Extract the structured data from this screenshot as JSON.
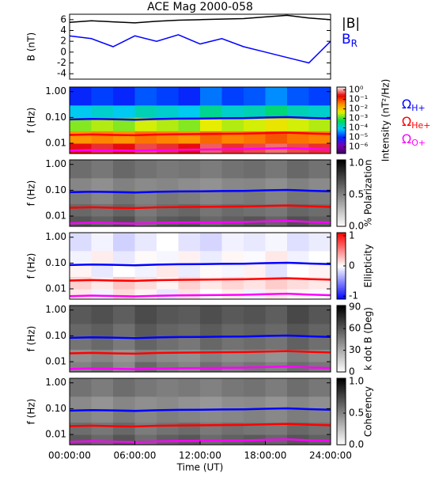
{
  "chart_data": [
    {
      "type": "line",
      "title": "ACE Mag 2000-058",
      "ylabel": "B (nT)",
      "xlim": [
        0,
        24
      ],
      "x": [
        0,
        2,
        4,
        6,
        8,
        10,
        12,
        14,
        16,
        18,
        20,
        22,
        24
      ],
      "ylim": [
        -5,
        7
      ],
      "yticks": [
        -4,
        -2,
        0,
        2,
        4,
        6
      ],
      "series": [
        {
          "name": "|B|",
          "color": "#000000",
          "values": [
            5.5,
            5.8,
            5.6,
            5.4,
            5.7,
            5.9,
            6.0,
            6.1,
            6.2,
            6.5,
            6.8,
            6.3,
            6.0
          ]
        },
        {
          "name": "B",
          "subscript": "R",
          "color": "#0000ff",
          "values": [
            3.0,
            2.5,
            1.0,
            3.0,
            2.0,
            3.2,
            1.5,
            2.5,
            1.0,
            0.0,
            -1.0,
            -2.0,
            2.0
          ]
        }
      ]
    },
    {
      "type": "heatmap",
      "ylabel": "f (Hz)",
      "xlim": [
        0,
        24
      ],
      "ylim": [
        0.004,
        1.5
      ],
      "ylog": true,
      "yticks": [
        0.01,
        {
          "value": 0.1,
          "label": "0.10"
        },
        {
          "value": 1,
          "label": "1.00"
        }
      ],
      "x_bins": [
        0,
        2,
        4,
        6,
        8,
        10,
        12,
        14,
        16,
        18,
        20,
        22,
        24
      ],
      "y_bins": [
        0.004,
        0.01,
        0.03,
        0.1,
        0.3,
        1.5
      ],
      "z": [
        [
          0.3,
          0.4,
          0.3,
          0.5,
          0.4,
          0.3,
          0.6,
          0.4,
          0.5,
          0.7,
          0.5,
          0.4
        ],
        [
          0.03,
          0.04,
          0.03,
          0.05,
          0.04,
          0.03,
          0.06,
          0.04,
          0.05,
          0.08,
          0.05,
          0.04
        ],
        [
          0.002,
          0.003,
          0.002,
          0.004,
          0.003,
          0.002,
          0.005,
          0.003,
          0.004,
          0.006,
          0.004,
          0.003
        ],
        [
          0.0001,
          0.00015,
          0.0001,
          0.0002,
          0.00015,
          0.0001,
          0.0003,
          0.00015,
          0.0002,
          0.0004,
          0.0002,
          0.00015
        ],
        [
          1e-05,
          1.5e-05,
          1e-05,
          2e-05,
          1.5e-05,
          1e-05,
          3e-05,
          1.5e-05,
          2e-05,
          4e-05,
          2e-05,
          1.5e-05
        ]
      ],
      "colormap": "rainbow",
      "zlog": true,
      "zlim": [
        2e-07,
        2
      ],
      "colorbar_label": "Intensity (nT²/Hz)",
      "zticks": [
        {
          "value": 1,
          "label": "10⁰"
        },
        {
          "value": 0.1,
          "label": "10⁻¹"
        },
        {
          "value": 0.01,
          "label": "10⁻²"
        },
        {
          "value": 0.001,
          "label": "10⁻³"
        },
        {
          "value": 0.0001,
          "label": "10⁻⁴"
        },
        {
          "value": 1e-05,
          "label": "10⁻⁵"
        },
        {
          "value": 1e-06,
          "label": "10⁻⁶"
        }
      ],
      "x": [
        0,
        2,
        4,
        6,
        8,
        10,
        12,
        14,
        16,
        18,
        20,
        22,
        24
      ],
      "series": [
        {
          "name": "Ω",
          "subscript": "H+",
          "color": "#0000ff",
          "values": [
            0.084,
            0.088,
            0.085,
            0.082,
            0.087,
            0.09,
            0.091,
            0.093,
            0.094,
            0.099,
            0.103,
            0.096,
            0.091
          ]
        },
        {
          "name": "Ω",
          "subscript": "He+",
          "color": "#ff0000",
          "values": [
            0.021,
            0.022,
            0.021,
            0.0205,
            0.0217,
            0.0224,
            0.0228,
            0.0232,
            0.0236,
            0.0247,
            0.0258,
            0.024,
            0.0228
          ]
        },
        {
          "name": "Ω",
          "subscript": "O+",
          "color": "#ff00ff",
          "values": [
            0.0052,
            0.0055,
            0.0053,
            0.0051,
            0.0054,
            0.0056,
            0.0057,
            0.0058,
            0.0059,
            0.0062,
            0.0065,
            0.006,
            0.0057
          ]
        }
      ]
    },
    {
      "type": "heatmap",
      "ylabel": "f (Hz)",
      "xlim": [
        0,
        24
      ],
      "ylim": [
        0.004,
        1.5
      ],
      "ylog": true,
      "yticks": [
        0.01,
        {
          "value": 0.1,
          "label": "0.10"
        },
        {
          "value": 1,
          "label": "1.00"
        }
      ],
      "x_bins": [
        0,
        2,
        4,
        6,
        8,
        10,
        12,
        14,
        16,
        18,
        20,
        22,
        24
      ],
      "y_bins": [
        0.004,
        0.01,
        0.03,
        0.1,
        0.3,
        1.5
      ],
      "z": [
        [
          0.7,
          0.65,
          0.72,
          0.6,
          0.68,
          0.7,
          0.62,
          0.66,
          0.7,
          0.64,
          0.72,
          0.66
        ],
        [
          0.62,
          0.58,
          0.64,
          0.55,
          0.6,
          0.63,
          0.57,
          0.61,
          0.59,
          0.56,
          0.63,
          0.6
        ],
        [
          0.55,
          0.5,
          0.58,
          0.52,
          0.56,
          0.54,
          0.5,
          0.53,
          0.55,
          0.51,
          0.57,
          0.54
        ],
        [
          0.5,
          0.46,
          0.52,
          0.48,
          0.5,
          0.47,
          0.45,
          0.49,
          0.5,
          0.46,
          0.52,
          0.48
        ],
        [
          0.6,
          0.56,
          0.62,
          0.58,
          0.55,
          0.57,
          0.54,
          0.58,
          0.6,
          0.56,
          0.62,
          0.58
        ]
      ],
      "colormap": "gray",
      "zlim": [
        0,
        1.05
      ],
      "colorbar_label": "% Polarization",
      "zticks": [
        {
          "value": 0,
          "label": "0.0"
        },
        0.5,
        {
          "value": 1,
          "label": "1.0"
        }
      ]
    },
    {
      "type": "heatmap",
      "ylabel": "f (Hz)",
      "xlim": [
        0,
        24
      ],
      "ylim": [
        0.004,
        1.5
      ],
      "ylog": true,
      "yticks": [
        0.01,
        {
          "value": 0.1,
          "label": "0.10"
        },
        {
          "value": 1,
          "label": "1.00"
        }
      ],
      "x_bins": [
        0,
        2,
        4,
        6,
        8,
        10,
        12,
        14,
        16,
        18,
        20,
        22,
        24
      ],
      "y_bins": [
        0.004,
        0.01,
        0.03,
        0.1,
        0.3,
        1.5
      ],
      "z": [
        [
          0.1,
          -0.05,
          0.15,
          0.05,
          -0.1,
          0.12,
          0.0,
          0.08,
          -0.06,
          0.1,
          0.04,
          -0.02
        ],
        [
          0.2,
          0.1,
          0.25,
          0.15,
          0.05,
          0.2,
          0.1,
          0.18,
          0.12,
          0.22,
          0.15,
          0.1
        ],
        [
          0.05,
          -0.1,
          0.0,
          -0.05,
          0.1,
          -0.08,
          0.02,
          -0.04,
          0.06,
          -0.12,
          0.0,
          0.05
        ],
        [
          -0.05,
          0.08,
          -0.1,
          0.02,
          -0.04,
          0.06,
          -0.08,
          0.04,
          -0.02,
          0.1,
          -0.06,
          0.0
        ],
        [
          -0.15,
          -0.05,
          -0.2,
          -0.1,
          0.0,
          -0.12,
          -0.18,
          -0.06,
          -0.1,
          -0.04,
          -0.14,
          -0.08
        ]
      ],
      "colormap": "bwr",
      "zlim": [
        -1.1,
        1.1
      ],
      "colorbar_label": "Ellipticity",
      "zticks": [
        -1,
        0,
        1
      ]
    },
    {
      "type": "heatmap",
      "ylabel": "f (Hz)",
      "xlim": [
        0,
        24
      ],
      "ylim": [
        0.004,
        1.5
      ],
      "ylog": true,
      "yticks": [
        0.01,
        {
          "value": 0.1,
          "label": "0.10"
        },
        {
          "value": 1,
          "label": "1.00"
        }
      ],
      "x_bins": [
        0,
        2,
        4,
        6,
        8,
        10,
        12,
        14,
        16,
        18,
        20,
        22,
        24
      ],
      "y_bins": [
        0.004,
        0.01,
        0.03,
        0.1,
        0.3,
        1.5
      ],
      "z": [
        [
          45,
          50,
          42,
          55,
          48,
          44,
          52,
          47,
          50,
          46,
          53,
          49
        ],
        [
          40,
          44,
          38,
          46,
          42,
          40,
          45,
          41,
          43,
          39,
          47,
          42
        ],
        [
          50,
          54,
          48,
          56,
          52,
          49,
          55,
          51,
          53,
          50,
          57,
          52
        ],
        [
          55,
          58,
          52,
          60,
          56,
          54,
          59,
          55,
          57,
          54,
          61,
          56
        ],
        [
          60,
          63,
          58,
          65,
          61,
          59,
          64,
          60,
          62,
          58,
          66,
          61
        ]
      ],
      "colormap": "gray",
      "zlim": [
        0,
        92
      ],
      "colorbar_label": "k dot B (Deg)",
      "zticks": [
        0,
        30,
        60,
        90
      ]
    },
    {
      "type": "heatmap",
      "ylabel": "f (Hz)",
      "xlim": [
        0,
        24
      ],
      "ylim": [
        0.004,
        1.5
      ],
      "ylog": true,
      "yticks": [
        0.01,
        {
          "value": 0.1,
          "label": "0.10"
        },
        {
          "value": 1,
          "label": "1.00"
        }
      ],
      "x_bins": [
        0,
        2,
        4,
        6,
        8,
        10,
        12,
        14,
        16,
        18,
        20,
        22,
        24
      ],
      "y_bins": [
        0.004,
        0.01,
        0.03,
        0.1,
        0.3,
        1.5
      ],
      "z": [
        [
          0.68,
          0.62,
          0.7,
          0.6,
          0.66,
          0.69,
          0.61,
          0.65,
          0.68,
          0.63,
          0.7,
          0.65
        ],
        [
          0.6,
          0.56,
          0.62,
          0.54,
          0.58,
          0.61,
          0.55,
          0.59,
          0.57,
          0.55,
          0.62,
          0.58
        ],
        [
          0.52,
          0.48,
          0.55,
          0.5,
          0.53,
          0.51,
          0.48,
          0.5,
          0.52,
          0.49,
          0.54,
          0.51
        ],
        [
          0.48,
          0.44,
          0.5,
          0.46,
          0.48,
          0.45,
          0.43,
          0.47,
          0.48,
          0.44,
          0.5,
          0.46
        ],
        [
          0.58,
          0.54,
          0.6,
          0.56,
          0.53,
          0.55,
          0.52,
          0.56,
          0.58,
          0.54,
          0.6,
          0.56
        ]
      ],
      "colormap": "gray",
      "zlim": [
        0,
        1.05
      ],
      "colorbar_label": "Coherency",
      "zticks": [
        {
          "value": 0,
          "label": "0.0"
        },
        0.5,
        {
          "value": 1,
          "label": "1.0"
        }
      ],
      "xticks": [
        {
          "value": 0,
          "label": "00:00:00"
        },
        {
          "value": 6,
          "label": "06:00:00"
        },
        {
          "value": 12,
          "label": "12:00:00"
        },
        {
          "value": 18,
          "label": "18:00:00"
        },
        {
          "value": 24,
          "label": "24:00:00"
        }
      ],
      "xlabel": "Time (UT)"
    }
  ]
}
